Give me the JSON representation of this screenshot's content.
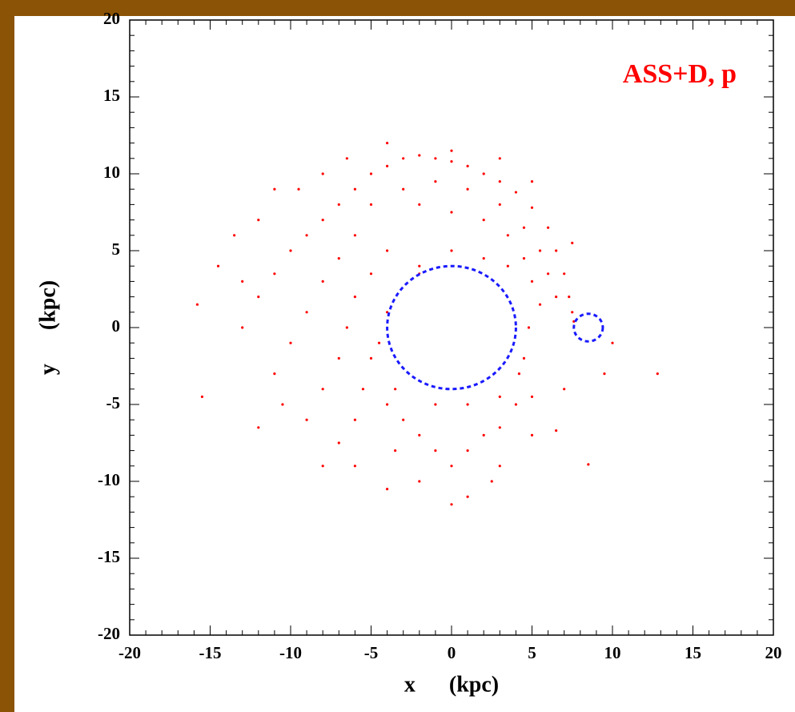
{
  "chart_data": {
    "type": "scatter",
    "annotation": "ASS+D, p",
    "xlabel": "x      (kpc)",
    "ylabel": "y      (kpc)",
    "color": "#ff0000",
    "xlim": [
      -20,
      20
    ],
    "ylim": [
      -20,
      20
    ],
    "xticks": [
      -20,
      -15,
      -10,
      -5,
      0,
      5,
      10,
      15,
      20
    ],
    "yticks": [
      -20,
      -15,
      -10,
      -5,
      0,
      5,
      10,
      15,
      20
    ],
    "minor_tick_step": 1,
    "circles": [
      {
        "cx": 0,
        "cy": 0,
        "r": 4,
        "color": "#1a1aff"
      },
      {
        "cx": 8.5,
        "cy": 0,
        "r": 0.9,
        "color": "#1a1aff"
      }
    ],
    "x": [
      -5,
      -4,
      -3,
      -2,
      -1,
      0,
      1,
      2,
      3,
      4,
      5,
      6,
      6.5,
      7,
      7.3,
      7.5,
      7.6,
      -3,
      -1,
      1,
      3,
      4.5,
      5.5,
      6,
      6.5,
      -5,
      -2,
      0,
      2,
      3.5,
      4.5,
      5,
      5.5,
      -6,
      -7,
      -8,
      -9,
      -10,
      -11,
      -12,
      -13,
      -6,
      -7,
      -8,
      -9,
      -10,
      -11,
      -4,
      -5,
      -6,
      -6.5,
      -7,
      -8,
      -9,
      -5,
      -5.5,
      -6,
      -7,
      -4,
      -3,
      -2,
      -1,
      0,
      1,
      2,
      3,
      4,
      5,
      4.5,
      4.8,
      -3.5,
      -2,
      0,
      1,
      2.5,
      -4,
      -6,
      -8,
      3,
      5,
      6.5,
      8.5,
      7,
      9.5,
      12.8,
      10,
      -15.8,
      -15.5,
      -14.5,
      -13.5,
      -12,
      -11,
      -8,
      -6.5,
      -4,
      0,
      3,
      5,
      7.5,
      -2,
      0,
      2,
      3.5,
      -4,
      -4.5,
      -3.5,
      -1,
      1,
      3,
      4.2,
      -2,
      -10.5,
      -12,
      -9.5,
      -13
    ],
    "y": [
      10,
      10.5,
      11,
      11.2,
      11,
      10.8,
      10.5,
      10,
      9.5,
      8.8,
      7.8,
      6.5,
      5,
      3.5,
      2,
      1,
      0.4,
      9,
      9.5,
      9,
      8,
      6.5,
      5,
      3.5,
      2,
      8,
      8,
      7.5,
      7,
      6,
      4.5,
      3,
      1.5,
      9,
      8,
      7,
      6,
      5,
      3.5,
      2,
      0,
      6,
      4.5,
      3,
      1,
      -1,
      -3,
      5,
      3.5,
      2,
      0,
      -2,
      -4,
      -6,
      -2,
      -4,
      -6,
      -7.5,
      -5,
      -6,
      -7,
      -8,
      -9,
      -8,
      -7,
      -6.5,
      -5,
      -4.5,
      -2,
      0,
      -8,
      -10,
      -11.5,
      -11,
      -10,
      -10.5,
      -9,
      -9,
      -9,
      -7,
      -6.7,
      -8.9,
      -4,
      -3,
      -3,
      -1,
      1.5,
      -4.5,
      4,
      6,
      7,
      9,
      10,
      11,
      12,
      11.5,
      11,
      9.5,
      5.5,
      4,
      5,
      4.5,
      4,
      1,
      -1,
      -4,
      -5,
      -5,
      -4.5,
      -3,
      3.5,
      -5,
      -6.5,
      9,
      3
    ]
  }
}
